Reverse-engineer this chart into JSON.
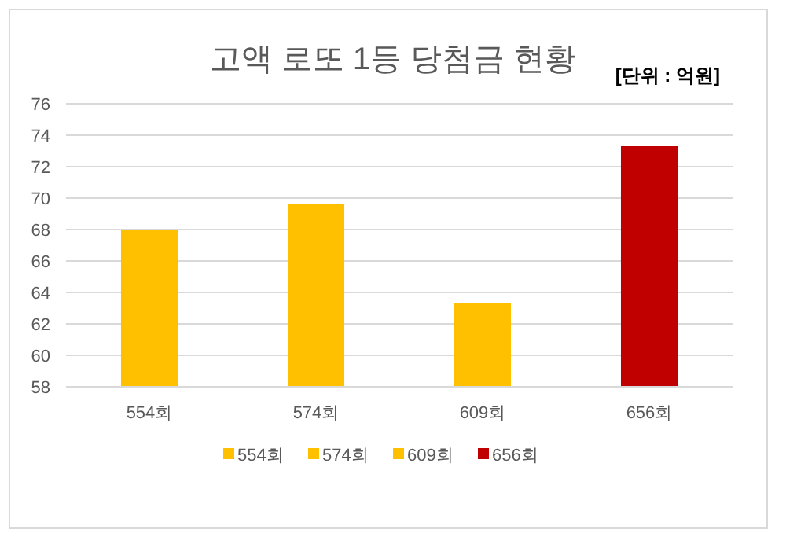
{
  "chart_data": {
    "type": "bar",
    "title": "고액 로또 1등 당첨금 현황",
    "annotations": [
      "[단위 : 억원]"
    ],
    "categories": [
      "554회",
      "574회",
      "609회",
      "656회"
    ],
    "series": [
      {
        "name": "554회",
        "color": "#ffc000",
        "values": [
          68.0,
          null,
          null,
          null
        ]
      },
      {
        "name": "574회",
        "color": "#ffc000",
        "values": [
          null,
          69.6,
          null,
          null
        ]
      },
      {
        "name": "609회",
        "color": "#ffc000",
        "values": [
          null,
          null,
          63.3,
          null
        ]
      },
      {
        "name": "656회",
        "color": "#c00000",
        "values": [
          null,
          null,
          null,
          73.3
        ]
      }
    ],
    "ylim": [
      58,
      76
    ],
    "yticks": [
      58,
      60,
      62,
      64,
      66,
      68,
      70,
      72,
      74,
      76
    ],
    "grid": "y",
    "legend": "bottom"
  }
}
